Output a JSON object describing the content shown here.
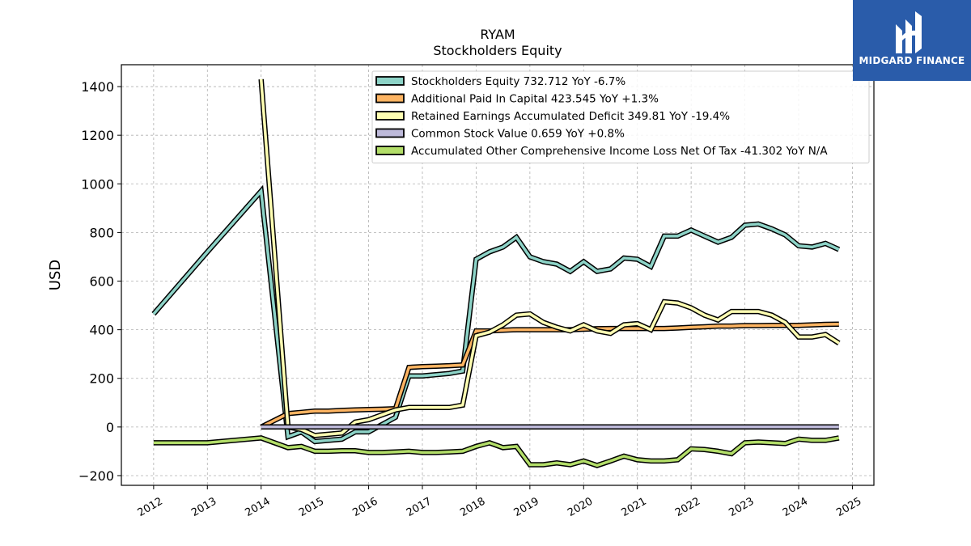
{
  "chart_data": {
    "type": "line",
    "title": "RYAM",
    "subtitle": "Stockholders  Equity",
    "ylabel": "USD",
    "xlabel": "",
    "xlim": [
      2011.4,
      2025.4
    ],
    "ylim": [
      -240,
      1490
    ],
    "yticks": [
      -200,
      0,
      200,
      400,
      600,
      800,
      1000,
      1200,
      1400
    ],
    "ytick_labels": [
      "−200",
      "0",
      "200",
      "400",
      "600",
      "800",
      "1000",
      "1200",
      "1400"
    ],
    "xticks": [
      2012,
      2013,
      2014,
      2015,
      2016,
      2017,
      2018,
      2019,
      2020,
      2021,
      2022,
      2023,
      2024,
      2025
    ],
    "xtick_labels": [
      "2012",
      "2013",
      "2014",
      "2015",
      "2016",
      "2017",
      "2018",
      "2019",
      "2020",
      "2021",
      "2022",
      "2023",
      "2024",
      "2025"
    ],
    "grid": true,
    "legend_position": "top-right",
    "series": [
      {
        "name": "Stockholders Equity",
        "legend_label": "Stockholders Equity  732.712 YoY -6.7%",
        "color": "#8dd3c7",
        "x": [
          2012.0,
          2013.0,
          2014.0,
          2014.5,
          2014.75,
          2015.0,
          2015.25,
          2015.5,
          2015.75,
          2016.0,
          2016.25,
          2016.5,
          2016.75,
          2017.0,
          2017.25,
          2017.5,
          2017.75,
          2018.0,
          2018.25,
          2018.5,
          2018.75,
          2019.0,
          2019.25,
          2019.5,
          2019.75,
          2020.0,
          2020.25,
          2020.5,
          2020.75,
          2021.0,
          2021.25,
          2021.5,
          2021.75,
          2022.0,
          2022.25,
          2022.5,
          2022.75,
          2023.0,
          2023.25,
          2023.5,
          2023.75,
          2024.0,
          2024.25,
          2024.5,
          2024.75
        ],
        "y": [
          465,
          720,
          970,
          -40,
          -20,
          -60,
          -55,
          -50,
          -20,
          -20,
          10,
          40,
          210,
          210,
          215,
          220,
          230,
          690,
          720,
          740,
          780,
          700,
          680,
          670,
          640,
          680,
          640,
          650,
          695,
          690,
          660,
          785,
          785,
          810,
          785,
          760,
          780,
          830,
          835,
          815,
          790,
          745,
          740,
          755,
          730
        ]
      },
      {
        "name": "Additional Paid In Capital",
        "legend_label": "Additional Paid In Capital  423.545 YoY +1.3%",
        "color": "#fdb462",
        "x": [
          2014.0,
          2014.5,
          2014.75,
          2015.0,
          2015.25,
          2015.5,
          2015.75,
          2016.0,
          2016.25,
          2016.5,
          2016.75,
          2017.0,
          2017.25,
          2017.5,
          2017.75,
          2018.0,
          2018.25,
          2018.5,
          2018.75,
          2019.0,
          2019.25,
          2019.5,
          2019.75,
          2020.0,
          2020.25,
          2020.5,
          2020.75,
          2021.0,
          2021.25,
          2021.5,
          2021.75,
          2022.0,
          2022.25,
          2022.5,
          2022.75,
          2023.0,
          2023.25,
          2023.5,
          2023.75,
          2024.0,
          2024.25,
          2024.5,
          2024.75
        ],
        "y": [
          0,
          55,
          60,
          65,
          65,
          68,
          70,
          72,
          73,
          75,
          245,
          248,
          250,
          252,
          255,
          395,
          395,
          398,
          400,
          400,
          400,
          400,
          400,
          402,
          404,
          405,
          405,
          405,
          405,
          405,
          407,
          410,
          412,
          415,
          415,
          417,
          417,
          418,
          418,
          418,
          420,
          422,
          423
        ]
      },
      {
        "name": "Retained Earnings Accumulated Deficit",
        "legend_label": "Retained Earnings Accumulated Deficit  349.81 YoY -19.4%",
        "color": "#ffffb3",
        "x": [
          2014.0,
          2014.5,
          2014.75,
          2015.0,
          2015.25,
          2015.5,
          2015.75,
          2016.0,
          2016.25,
          2016.5,
          2016.75,
          2017.0,
          2017.25,
          2017.5,
          2017.75,
          2018.0,
          2018.25,
          2018.5,
          2018.75,
          2019.0,
          2019.25,
          2019.5,
          2019.75,
          2020.0,
          2020.25,
          2020.5,
          2020.75,
          2021.0,
          2021.25,
          2021.5,
          2021.75,
          2022.0,
          2022.25,
          2022.5,
          2022.75,
          2023.0,
          2023.25,
          2023.5,
          2023.75,
          2024.0,
          2024.25,
          2024.5,
          2024.75
        ],
        "y": [
          1430,
          0,
          -10,
          -35,
          -30,
          -25,
          20,
          30,
          50,
          70,
          80,
          80,
          80,
          80,
          90,
          375,
          390,
          420,
          460,
          465,
          430,
          410,
          395,
          420,
          395,
          385,
          420,
          425,
          400,
          515,
          510,
          490,
          460,
          440,
          475,
          475,
          475,
          460,
          430,
          370,
          370,
          380,
          345
        ]
      },
      {
        "name": "Common Stock Value",
        "legend_label": "Common Stock Value  0.659 YoY +0.8%",
        "color": "#bebada",
        "x": [
          2014.0,
          2014.75,
          2016.0,
          2018.0,
          2020.0,
          2022.0,
          2024.75
        ],
        "y": [
          0.6,
          0.6,
          0.6,
          0.6,
          0.6,
          0.6,
          0.66
        ]
      },
      {
        "name": "Accumulated Other Comprehensive Income Loss Net Of Tax",
        "legend_label": "Accumulated Other Comprehensive Income Loss Net Of Tax  -41.302 YoY N/A",
        "color": "#b3de69",
        "x": [
          2012.0,
          2013.0,
          2014.0,
          2014.5,
          2014.75,
          2015.0,
          2015.25,
          2015.5,
          2015.75,
          2016.0,
          2016.25,
          2016.5,
          2016.75,
          2017.0,
          2017.25,
          2017.5,
          2017.75,
          2018.0,
          2018.25,
          2018.5,
          2018.75,
          2019.0,
          2019.25,
          2019.5,
          2019.75,
          2020.0,
          2020.25,
          2020.5,
          2020.75,
          2021.0,
          2021.25,
          2021.5,
          2021.75,
          2022.0,
          2022.25,
          2022.5,
          2022.75,
          2023.0,
          2023.25,
          2023.5,
          2023.75,
          2024.0,
          2024.25,
          2024.5,
          2024.75
        ],
        "y": [
          -65,
          -65,
          -45,
          -85,
          -80,
          -100,
          -100,
          -98,
          -98,
          -105,
          -105,
          -103,
          -100,
          -105,
          -105,
          -103,
          -100,
          -80,
          -65,
          -85,
          -80,
          -155,
          -155,
          -148,
          -155,
          -140,
          -158,
          -140,
          -120,
          -135,
          -140,
          -140,
          -135,
          -90,
          -93,
          -100,
          -110,
          -65,
          -62,
          -65,
          -68,
          -50,
          -55,
          -55,
          -45
        ]
      }
    ]
  },
  "logo": {
    "text": "MIDGARD FINANCE",
    "background": "#2a5caa"
  }
}
